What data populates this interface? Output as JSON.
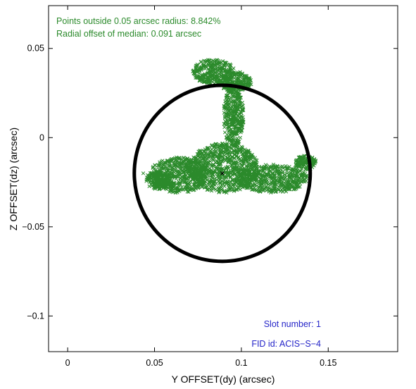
{
  "chart_data": {
    "type": "scatter",
    "xlabel": "Y OFFSET(dy) (arcsec)",
    "ylabel": "Z OFFSET(dz) (arcsec)",
    "xlim": [
      -0.011,
      0.19
    ],
    "ylim": [
      -0.12,
      0.074
    ],
    "x_ticks": [
      0,
      0.05,
      0.1,
      0.15
    ],
    "x_tick_labels": [
      "0",
      "0.05",
      "0.1",
      "0.15"
    ],
    "y_ticks": [
      0.05,
      0,
      -0.05,
      -0.1
    ],
    "y_tick_labels": [
      "0.05",
      "0",
      "−0.05",
      "−0.1"
    ],
    "grid": false,
    "annotations": {
      "points_outside": "Points outside 0.05 arcsec radius: 8.842%",
      "radial_offset": "Radial offset of median: 0.091 arcsec",
      "slot_number": "Slot number: 1",
      "fid_id": "FID id: ACIS−S−4"
    },
    "median": {
      "x": 0.089,
      "y": -0.02
    },
    "circle": {
      "center_x": 0.089,
      "center_y": -0.02,
      "radius": 0.05
    },
    "regions": [
      {
        "name": "hook-top",
        "cx": 0.084,
        "cy": 0.037,
        "rx": 0.012,
        "ry": 0.007
      },
      {
        "name": "hook-right",
        "cx": 0.097,
        "cy": 0.031,
        "rx": 0.009,
        "ry": 0.006
      },
      {
        "name": "neck",
        "cx": 0.0955,
        "cy": 0.012,
        "rx": 0.006,
        "ry": 0.017
      },
      {
        "name": "body-center",
        "cx": 0.09,
        "cy": -0.017,
        "rx": 0.02,
        "ry": 0.014
      },
      {
        "name": "left-wing",
        "cx": 0.064,
        "cy": -0.021,
        "rx": 0.017,
        "ry": 0.01
      },
      {
        "name": "right-wing",
        "cx": 0.118,
        "cy": -0.023,
        "rx": 0.02,
        "ry": 0.008
      },
      {
        "name": "right-tip",
        "cx": 0.137,
        "cy": -0.014,
        "rx": 0.006,
        "ry": 0.004
      },
      {
        "name": "left-tail",
        "cx": 0.052,
        "cy": -0.024,
        "rx": 0.007,
        "ry": 0.005
      }
    ],
    "outliers": [
      {
        "x": 0.0435,
        "y": -0.02
      },
      {
        "x": 0.046,
        "y": -0.021
      },
      {
        "x": 0.049,
        "y": -0.017
      },
      {
        "x": 0.138,
        "y": -0.009
      },
      {
        "x": 0.14,
        "y": -0.012
      }
    ],
    "colors": {
      "points": "#2b8a2b",
      "median": "#000000",
      "circle": "#000000",
      "stats_text": "#2b8a2b",
      "info_text": "#2424c8",
      "axes": "#000000"
    }
  }
}
